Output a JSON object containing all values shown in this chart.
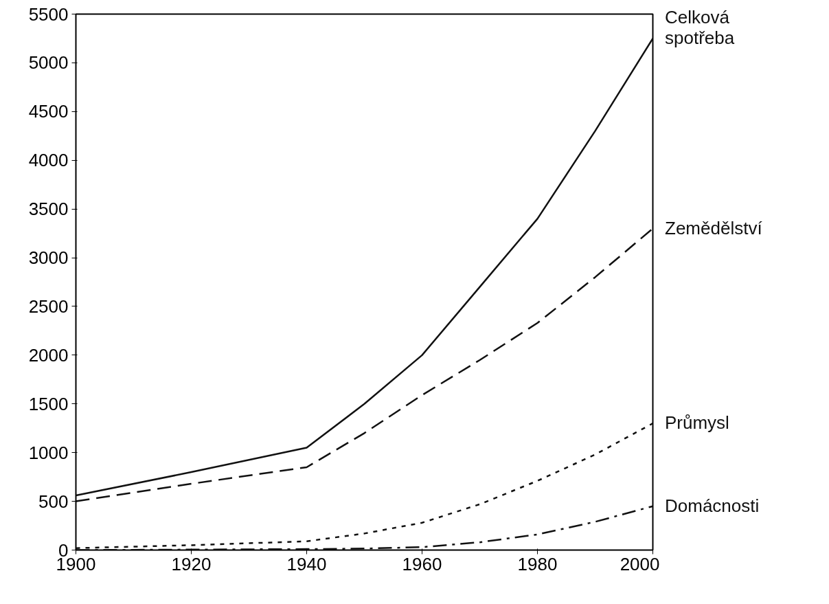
{
  "chart_data": {
    "type": "line",
    "x": [
      1900,
      1920,
      1940,
      1950,
      1960,
      1970,
      1980,
      1990,
      2000
    ],
    "series": [
      {
        "name": "Celková spotřeba",
        "color": "#111111",
        "line_style": "solid",
        "values": [
          560,
          800,
          1050,
          1500,
          2000,
          2700,
          3400,
          4300,
          5250
        ]
      },
      {
        "name": "Zemědělství",
        "color": "#111111",
        "line_style": "dashed",
        "values": [
          500,
          680,
          850,
          1200,
          1590,
          1950,
          2330,
          2800,
          3300
        ]
      },
      {
        "name": "Průmysl",
        "color": "#111111",
        "line_style": "dotted",
        "values": [
          20,
          50,
          90,
          170,
          280,
          470,
          710,
          980,
          1300
        ]
      },
      {
        "name": "Domácnosti",
        "color": "#111111",
        "line_style": "dashdot",
        "values": [
          0,
          5,
          10,
          15,
          30,
          80,
          160,
          290,
          450
        ]
      }
    ],
    "xlim": [
      1900,
      2000
    ],
    "xticks": [
      1900,
      1920,
      1940,
      1960,
      1980,
      2000
    ],
    "ylim": [
      0,
      5500
    ],
    "yticks": [
      0,
      500,
      1000,
      1500,
      2000,
      2500,
      3000,
      3500,
      4000,
      4500,
      5000,
      5500
    ],
    "grid": false,
    "marker": "none"
  }
}
